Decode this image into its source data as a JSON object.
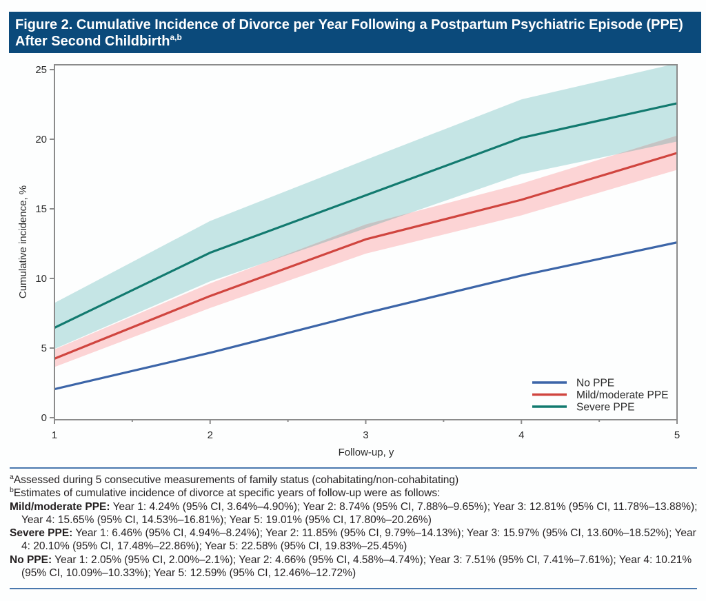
{
  "header": {
    "title_lines": [
      "Figure 2. Cumulative Incidence of Divorce per Year Following a Postpartum Psychiatric Episode (PPE)",
      "After Second Childbirth"
    ],
    "title_superscript": "a,b"
  },
  "chart_data": {
    "type": "line",
    "title": "Figure 2. Cumulative Incidence of Divorce per Year Following a Postpartum Psychiatric Episode (PPE) After Second Childbirth",
    "xlabel": "Follow-up, y",
    "ylabel": "Cumulative incidence, %",
    "x": [
      1,
      2,
      3,
      4,
      5
    ],
    "xlim": [
      1,
      5
    ],
    "ylim": [
      0,
      25
    ],
    "xticks": [
      1,
      2,
      3,
      4,
      5
    ],
    "yticks": [
      0,
      5,
      10,
      15,
      20,
      25
    ],
    "grid": false,
    "legend_position": "bottom-right",
    "series": [
      {
        "name": "No PPE",
        "color": "#3c65a8",
        "band_color": null,
        "values": [
          2.05,
          4.66,
          7.51,
          10.21,
          12.59
        ],
        "ci_lower": [
          2.0,
          4.58,
          7.41,
          10.09,
          12.46
        ],
        "ci_upper": [
          2.1,
          4.74,
          7.61,
          10.33,
          12.72
        ]
      },
      {
        "name": "Mild/moderate PPE",
        "color": "#d0453f",
        "band_color": "#fcd4d5",
        "values": [
          4.24,
          8.74,
          12.81,
          15.65,
          19.01
        ],
        "ci_lower": [
          3.64,
          7.88,
          11.78,
          14.53,
          17.8
        ],
        "ci_upper": [
          4.9,
          9.65,
          13.88,
          16.81,
          20.26
        ]
      },
      {
        "name": "Severe PPE",
        "color": "#127a6f",
        "band_color": "#c5e5e5",
        "values": [
          6.46,
          11.85,
          15.97,
          20.1,
          22.58
        ],
        "ci_lower": [
          4.94,
          9.79,
          13.6,
          17.48,
          19.83
        ],
        "ci_upper": [
          8.24,
          14.13,
          18.52,
          22.86,
          25.45
        ]
      }
    ],
    "band_overlap": {
      "between": [
        1,
        2
      ],
      "color": "#c4c4c4"
    }
  },
  "footnotes": {
    "a": {
      "marker": "a",
      "text": "Assessed during 5 consecutive measurements of family status (cohabitating/non-cohabitating)"
    },
    "b": {
      "marker": "b",
      "text": "Estimates of cumulative incidence of divorce at specific years of follow-up were as follows:"
    },
    "estimates": [
      {
        "label": "Mild/moderate PPE:",
        "text": " Year 1: 4.24% (95% CI, 3.64%–4.90%); Year 2: 8.74% (95% CI, 7.88%–9.65%); Year 3: 12.81% (95% CI, 11.78%–13.88%); Year 4: 15.65% (95% CI, 14.53%–16.81%); Year 5: 19.01% (95% CI, 17.80%–20.26%)"
      },
      {
        "label": "Severe PPE:",
        "text": " Year 1: 6.46% (95% CI, 4.94%–8.24%); Year 2: 11.85% (95% CI, 9.79%–14.13%); Year 3: 15.97% (95% CI, 13.60%–18.52%); Year 4: 20.10% (95% CI, 17.48%–22.86%); Year 5: 22.58% (95% CI, 19.83%–25.45%)"
      },
      {
        "label": "No PPE:",
        "text": " Year 1: 2.05% (95% CI, 2.00%–2.1%); Year 2: 4.66% (95% CI, 4.58%–4.74%); Year 3: 7.51% (95% CI, 7.41%–7.61%); Year 4: 10.21% (95% CI, 10.09%–10.33%); Year 5: 12.59% (95% CI, 12.46%–12.72%)"
      }
    ]
  }
}
